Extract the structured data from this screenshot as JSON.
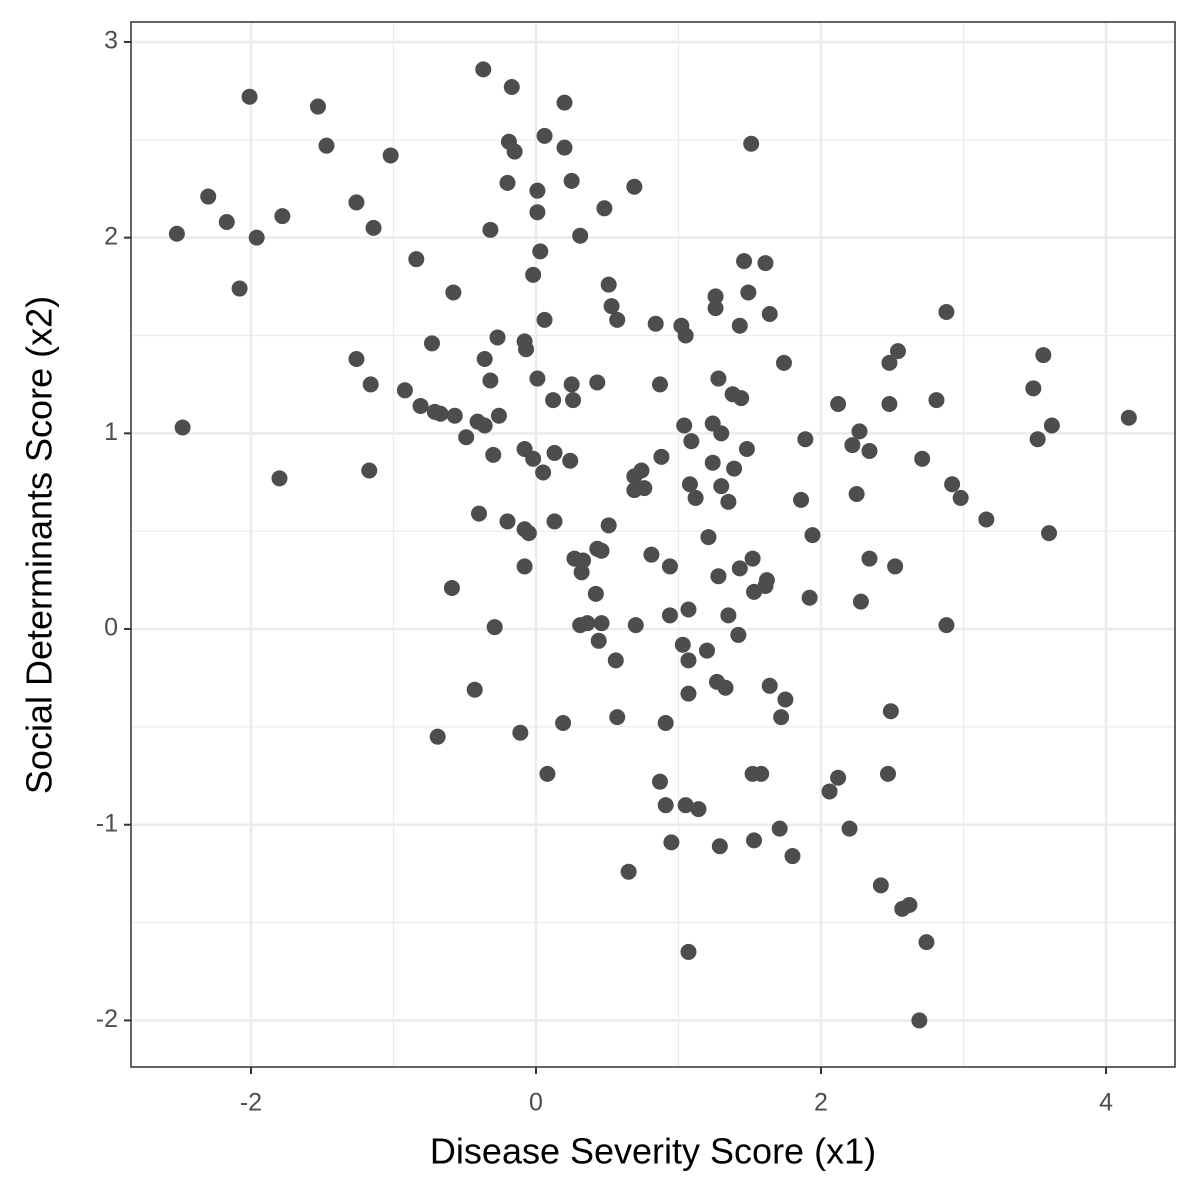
{
  "chart_data": {
    "type": "scatter",
    "x_label": "Disease Severity Score (x1)",
    "y_label": "Social Determinants Score (x2)",
    "color": "#4d4d4d",
    "grid": true,
    "xlim": [
      -2.842,
      4.484
    ],
    "ylim": [
      -2.238,
      3.102
    ],
    "xticks": [
      -2,
      0,
      2,
      4
    ],
    "yticks": [
      -2,
      -1,
      0,
      1,
      2,
      3
    ],
    "x": [
      -2.52,
      -2.48,
      -2.3,
      -2.17,
      -2.08,
      -2.01,
      -1.96,
      -1.8,
      -1.78,
      -1.53,
      -1.47,
      -1.26,
      -1.26,
      -1.17,
      -1.16,
      -1.14,
      -1.02,
      -0.92,
      -0.84,
      -0.81,
      -0.73,
      -0.71,
      -0.69,
      -0.67,
      -0.59,
      -0.58,
      -0.57,
      -0.49,
      -0.43,
      -0.41,
      -0.4,
      -0.37,
      -0.36,
      -0.36,
      -0.32,
      -0.32,
      -0.3,
      -0.29,
      -0.27,
      -0.26,
      -0.2,
      -0.2,
      -0.19,
      -0.17,
      -0.15,
      -0.11,
      -0.08,
      -0.08,
      -0.08,
      -0.08,
      -0.07,
      -0.05,
      -0.02,
      -0.02,
      0.01,
      0.01,
      0.01,
      0.03,
      0.05,
      0.06,
      0.06,
      0.08,
      0.12,
      0.13,
      0.13,
      0.19,
      0.2,
      0.2,
      0.24,
      0.25,
      0.25,
      0.26,
      0.27,
      0.31,
      0.31,
      0.32,
      0.33,
      0.36,
      0.42,
      0.43,
      0.43,
      0.44,
      0.46,
      0.46,
      0.48,
      0.51,
      0.51,
      0.53,
      0.56,
      0.57,
      0.57,
      0.65,
      0.69,
      0.69,
      0.69,
      0.7,
      0.74,
      0.76,
      0.81,
      0.84,
      0.87,
      0.87,
      0.88,
      0.91,
      0.91,
      0.94,
      0.94,
      0.95,
      1.02,
      1.03,
      1.04,
      1.05,
      1.05,
      1.07,
      1.07,
      1.07,
      1.07,
      1.08,
      1.09,
      1.12,
      1.14,
      1.2,
      1.21,
      1.24,
      1.24,
      1.26,
      1.26,
      1.27,
      1.28,
      1.28,
      1.29,
      1.3,
      1.3,
      1.33,
      1.35,
      1.35,
      1.38,
      1.39,
      1.42,
      1.43,
      1.43,
      1.44,
      1.46,
      1.48,
      1.49,
      1.51,
      1.52,
      1.52,
      1.53,
      1.53,
      1.58,
      1.61,
      1.61,
      1.62,
      1.64,
      1.64,
      1.71,
      1.72,
      1.74,
      1.75,
      1.8,
      1.86,
      1.89,
      1.92,
      1.94,
      2.06,
      2.12,
      2.12,
      2.2,
      2.22,
      2.25,
      2.27,
      2.28,
      2.34,
      2.34,
      2.42,
      2.47,
      2.48,
      2.48,
      2.49,
      2.52,
      2.54,
      2.57,
      2.62,
      2.69,
      2.71,
      2.74,
      2.81,
      2.88,
      2.88,
      2.92,
      2.98,
      3.16,
      3.49,
      3.52,
      3.56,
      3.6,
      3.62,
      4.16
    ],
    "values": [
      2.02,
      1.03,
      2.21,
      2.08,
      1.74,
      2.72,
      2.0,
      0.77,
      2.11,
      2.67,
      2.47,
      1.38,
      2.18,
      0.81,
      1.25,
      2.05,
      2.42,
      1.22,
      1.89,
      1.14,
      1.46,
      1.11,
      -0.55,
      1.1,
      0.21,
      1.72,
      1.09,
      0.98,
      -0.31,
      1.06,
      0.59,
      2.86,
      1.04,
      1.38,
      1.27,
      2.04,
      0.89,
      0.01,
      1.49,
      1.09,
      2.28,
      0.55,
      2.49,
      2.77,
      2.44,
      -0.53,
      0.32,
      1.47,
      0.92,
      0.51,
      1.43,
      0.49,
      0.87,
      1.81,
      2.24,
      2.13,
      1.28,
      1.93,
      0.8,
      2.52,
      1.58,
      -0.74,
      1.17,
      0.55,
      0.9,
      -0.48,
      2.46,
      2.69,
      0.86,
      2.29,
      1.25,
      1.17,
      0.36,
      2.01,
      0.02,
      0.29,
      0.35,
      0.03,
      0.18,
      1.26,
      0.41,
      -0.06,
      0.4,
      0.03,
      2.15,
      1.76,
      0.53,
      1.65,
      -0.16,
      1.58,
      -0.45,
      -1.24,
      2.26,
      0.78,
      0.71,
      0.02,
      0.81,
      0.72,
      0.38,
      1.56,
      -0.78,
      1.25,
      0.88,
      -0.9,
      -0.48,
      0.32,
      0.07,
      -1.09,
      1.55,
      -0.08,
      1.04,
      -0.9,
      1.5,
      -1.65,
      -0.16,
      -0.33,
      0.1,
      0.74,
      0.96,
      0.67,
      -0.92,
      -0.11,
      0.47,
      1.05,
      0.85,
      1.7,
      1.64,
      -0.27,
      1.28,
      0.27,
      -1.11,
      0.73,
      1.0,
      -0.3,
      0.07,
      0.65,
      1.2,
      0.82,
      -0.03,
      1.55,
      0.31,
      1.18,
      1.88,
      0.92,
      1.72,
      2.48,
      0.36,
      -0.74,
      -1.08,
      0.19,
      -0.74,
      0.22,
      1.87,
      0.25,
      1.61,
      -0.29,
      -1.02,
      -0.45,
      1.36,
      -0.36,
      -1.16,
      0.66,
      0.97,
      0.16,
      0.48,
      -0.83,
      -0.76,
      1.15,
      -1.02,
      0.94,
      0.69,
      1.01,
      0.14,
      0.91,
      0.36,
      -1.31,
      -0.74,
      1.36,
      1.15,
      -0.42,
      0.32,
      1.42,
      -1.43,
      -1.41,
      -2.0,
      0.87,
      -1.6,
      1.17,
      0.02,
      1.62,
      0.74,
      0.67,
      0.56,
      1.23,
      0.97,
      1.4,
      0.49,
      1.04,
      1.08
    ]
  }
}
